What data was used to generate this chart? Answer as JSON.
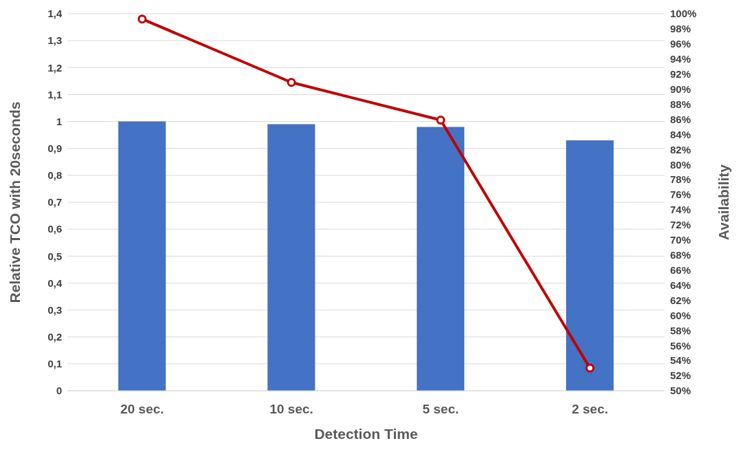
{
  "chart_data": {
    "type": "bar",
    "xlabel": "Detection Time",
    "ylabel": "Relative TCO with 20seconds",
    "y2label": "Availability",
    "categories": [
      "20 sec.",
      "10 sec.",
      "5 sec.",
      "2 sec."
    ],
    "series": [
      {
        "color": "#4472c4",
        "values": [
          1.0,
          0.99,
          0.98,
          0.93
        ]
      },
      {
        "type": "line",
        "axis": "y2",
        "color": "#c00000",
        "marker": "circle",
        "line_style": "solid",
        "values": [
          99.3,
          90.9,
          85.9,
          53.0
        ]
      }
    ],
    "ylim": [
      0,
      1.4
    ],
    "yticks": [
      0,
      {
        "value": 0.1,
        "label": "0,1"
      },
      {
        "value": 0.2,
        "label": "0,2"
      },
      {
        "value": 0.3,
        "label": "0,3"
      },
      {
        "value": 0.4,
        "label": "0,4"
      },
      {
        "value": 0.5,
        "label": "0,5"
      },
      {
        "value": 0.6,
        "label": "0,6"
      },
      {
        "value": 0.7,
        "label": "0,7"
      },
      {
        "value": 0.8,
        "label": "0,8"
      },
      {
        "value": 0.9,
        "label": "0,9"
      },
      1,
      {
        "value": 1.1,
        "label": "1,1"
      },
      {
        "value": 1.2,
        "label": "1,2"
      },
      {
        "value": 1.3,
        "label": "1,3"
      },
      {
        "value": 1.4,
        "label": "1,4"
      }
    ],
    "y2lim": [
      50,
      100
    ],
    "y2ticks": [
      {
        "value": 50,
        "label": "50%"
      },
      {
        "value": 52,
        "label": "52%"
      },
      {
        "value": 54,
        "label": "54%"
      },
      {
        "value": 56,
        "label": "56%"
      },
      {
        "value": 58,
        "label": "58%"
      },
      {
        "value": 60,
        "label": "60%"
      },
      {
        "value": 62,
        "label": "62%"
      },
      {
        "value": 64,
        "label": "64%"
      },
      {
        "value": 66,
        "label": "66%"
      },
      {
        "value": 68,
        "label": "68%"
      },
      {
        "value": 70,
        "label": "70%"
      },
      {
        "value": 72,
        "label": "72%"
      },
      {
        "value": 74,
        "label": "74%"
      },
      {
        "value": 76,
        "label": "76%"
      },
      {
        "value": 78,
        "label": "78%"
      },
      {
        "value": 80,
        "label": "80%"
      },
      {
        "value": 82,
        "label": "82%"
      },
      {
        "value": 84,
        "label": "84%"
      },
      {
        "value": 86,
        "label": "86%"
      },
      {
        "value": 88,
        "label": "88%"
      },
      {
        "value": 90,
        "label": "90%"
      },
      {
        "value": 92,
        "label": "92%"
      },
      {
        "value": 94,
        "label": "94%"
      },
      {
        "value": 96,
        "label": "96%"
      },
      {
        "value": 98,
        "label": "98%"
      },
      {
        "value": 100,
        "label": "100%"
      }
    ],
    "grid": "y",
    "legend": false
  }
}
